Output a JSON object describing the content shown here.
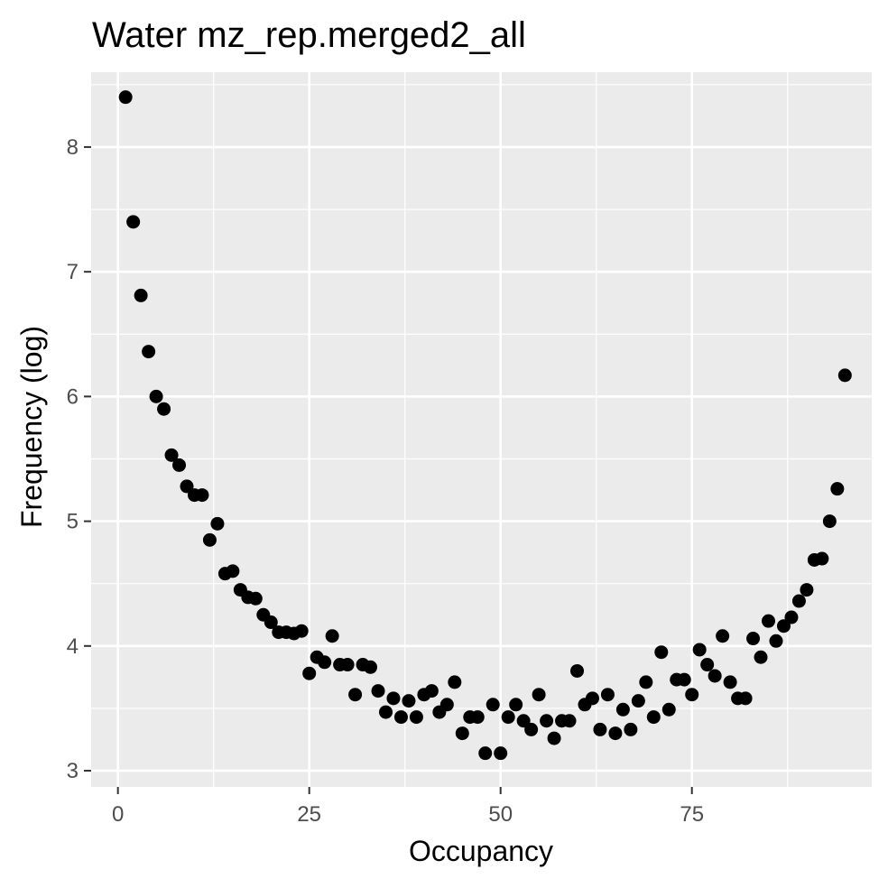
{
  "chart_data": {
    "type": "scatter",
    "title": "Water mz_rep.merged2_all",
    "xlabel": "Occupancy",
    "ylabel": "Frequency (log)",
    "xlim": [
      -3.5,
      98.5
    ],
    "ylim": [
      2.87,
      8.6
    ],
    "x_ticks": [
      0,
      25,
      50,
      75
    ],
    "y_ticks": [
      3,
      4,
      5,
      6,
      7,
      8
    ],
    "grid": true,
    "colors": {
      "panel": "#ebebeb",
      "grid": "#ffffff",
      "point": "#000000",
      "tick": "#333333",
      "tick_label": "#4d4d4d"
    },
    "points": [
      {
        "x": 1,
        "y": 8.4
      },
      {
        "x": 2,
        "y": 7.4
      },
      {
        "x": 3,
        "y": 6.81
      },
      {
        "x": 4,
        "y": 6.36
      },
      {
        "x": 5,
        "y": 6.0
      },
      {
        "x": 6,
        "y": 5.9
      },
      {
        "x": 7,
        "y": 5.53
      },
      {
        "x": 8,
        "y": 5.45
      },
      {
        "x": 9,
        "y": 5.28
      },
      {
        "x": 10,
        "y": 5.21
      },
      {
        "x": 11,
        "y": 5.21
      },
      {
        "x": 12,
        "y": 4.85
      },
      {
        "x": 13,
        "y": 4.98
      },
      {
        "x": 14,
        "y": 4.58
      },
      {
        "x": 15,
        "y": 4.6
      },
      {
        "x": 16,
        "y": 4.45
      },
      {
        "x": 17,
        "y": 4.39
      },
      {
        "x": 18,
        "y": 4.38
      },
      {
        "x": 19,
        "y": 4.25
      },
      {
        "x": 20,
        "y": 4.19
      },
      {
        "x": 21,
        "y": 4.11
      },
      {
        "x": 22,
        "y": 4.11
      },
      {
        "x": 23,
        "y": 4.1
      },
      {
        "x": 24,
        "y": 4.12
      },
      {
        "x": 25,
        "y": 3.78
      },
      {
        "x": 26,
        "y": 3.91
      },
      {
        "x": 27,
        "y": 3.87
      },
      {
        "x": 28,
        "y": 4.08
      },
      {
        "x": 29,
        "y": 3.85
      },
      {
        "x": 30,
        "y": 3.85
      },
      {
        "x": 31,
        "y": 3.61
      },
      {
        "x": 32,
        "y": 3.85
      },
      {
        "x": 33,
        "y": 3.83
      },
      {
        "x": 34,
        "y": 3.64
      },
      {
        "x": 35,
        "y": 3.47
      },
      {
        "x": 36,
        "y": 3.58
      },
      {
        "x": 37,
        "y": 3.43
      },
      {
        "x": 38,
        "y": 3.56
      },
      {
        "x": 39,
        "y": 3.43
      },
      {
        "x": 40,
        "y": 3.61
      },
      {
        "x": 41,
        "y": 3.64
      },
      {
        "x": 42,
        "y": 3.47
      },
      {
        "x": 43,
        "y": 3.53
      },
      {
        "x": 44,
        "y": 3.71
      },
      {
        "x": 45,
        "y": 3.3
      },
      {
        "x": 46,
        "y": 3.43
      },
      {
        "x": 47,
        "y": 3.43
      },
      {
        "x": 48,
        "y": 3.14
      },
      {
        "x": 49,
        "y": 3.53
      },
      {
        "x": 50,
        "y": 3.14
      },
      {
        "x": 51,
        "y": 3.43
      },
      {
        "x": 52,
        "y": 3.53
      },
      {
        "x": 53,
        "y": 3.4
      },
      {
        "x": 54,
        "y": 3.33
      },
      {
        "x": 55,
        "y": 3.61
      },
      {
        "x": 56,
        "y": 3.4
      },
      {
        "x": 57,
        "y": 3.26
      },
      {
        "x": 58,
        "y": 3.4
      },
      {
        "x": 59,
        "y": 3.4
      },
      {
        "x": 60,
        "y": 3.8
      },
      {
        "x": 61,
        "y": 3.53
      },
      {
        "x": 62,
        "y": 3.58
      },
      {
        "x": 63,
        "y": 3.33
      },
      {
        "x": 64,
        "y": 3.61
      },
      {
        "x": 65,
        "y": 3.3
      },
      {
        "x": 66,
        "y": 3.49
      },
      {
        "x": 67,
        "y": 3.33
      },
      {
        "x": 68,
        "y": 3.56
      },
      {
        "x": 69,
        "y": 3.71
      },
      {
        "x": 70,
        "y": 3.43
      },
      {
        "x": 71,
        "y": 3.95
      },
      {
        "x": 72,
        "y": 3.49
      },
      {
        "x": 73,
        "y": 3.73
      },
      {
        "x": 74,
        "y": 3.73
      },
      {
        "x": 75,
        "y": 3.61
      },
      {
        "x": 76,
        "y": 3.97
      },
      {
        "x": 77,
        "y": 3.85
      },
      {
        "x": 78,
        "y": 3.76
      },
      {
        "x": 79,
        "y": 4.08
      },
      {
        "x": 80,
        "y": 3.71
      },
      {
        "x": 81,
        "y": 3.58
      },
      {
        "x": 82,
        "y": 3.58
      },
      {
        "x": 83,
        "y": 4.06
      },
      {
        "x": 84,
        "y": 3.91
      },
      {
        "x": 85,
        "y": 4.2
      },
      {
        "x": 86,
        "y": 4.04
      },
      {
        "x": 87,
        "y": 4.16
      },
      {
        "x": 88,
        "y": 4.23
      },
      {
        "x": 89,
        "y": 4.36
      },
      {
        "x": 90,
        "y": 4.45
      },
      {
        "x": 91,
        "y": 4.69
      },
      {
        "x": 92,
        "y": 4.7
      },
      {
        "x": 93,
        "y": 5.0
      },
      {
        "x": 94,
        "y": 5.26
      },
      {
        "x": 95,
        "y": 6.17
      }
    ]
  }
}
